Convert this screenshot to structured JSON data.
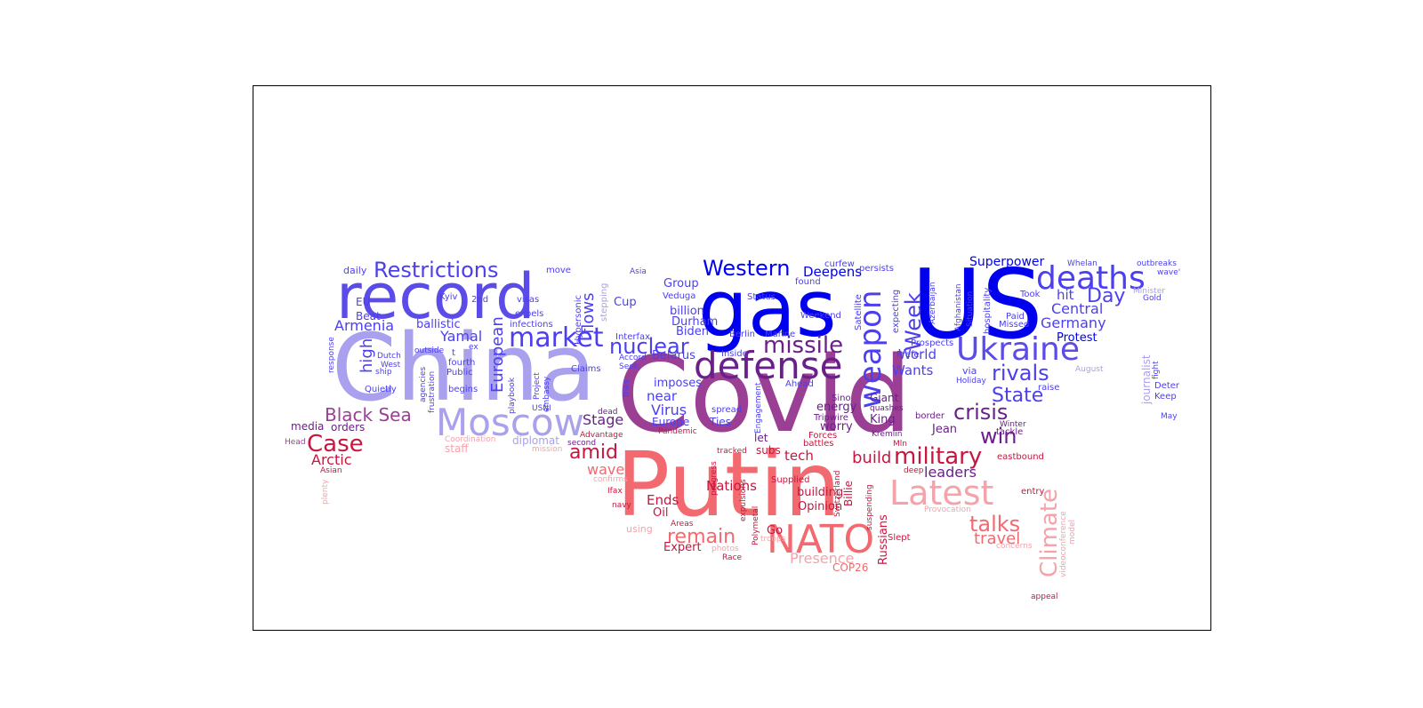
{
  "colors": {
    "blue": "#0000ee",
    "indigo": "#4b3ff0",
    "violet": "#5b4be8",
    "lavender": "#a9a0ee",
    "purple": "#6a1f8a",
    "mauve": "#9b3f95",
    "crimson": "#c8163f",
    "coral": "#f2696f",
    "pink": "#f4a3aa"
  },
  "words": [
    {
      "text": "Covid",
      "color": "mauve"
    },
    {
      "text": "Putin",
      "color": "coral"
    },
    {
      "text": "China",
      "color": "lavender"
    },
    {
      "text": "gas",
      "color": "blue"
    },
    {
      "text": "US",
      "color": "blue"
    },
    {
      "text": "record",
      "color": "violet"
    },
    {
      "text": "NATO",
      "color": "coral"
    },
    {
      "text": "Moscow",
      "color": "lavender"
    },
    {
      "text": "defense",
      "color": "purple"
    },
    {
      "text": "Ukraine",
      "color": "violet"
    },
    {
      "text": "weapon",
      "color": "indigo"
    },
    {
      "text": "Latest",
      "color": "pink"
    },
    {
      "text": "deaths",
      "color": "indigo"
    },
    {
      "text": "market",
      "color": "indigo"
    },
    {
      "text": "Restrictions",
      "color": "indigo"
    },
    {
      "text": "Western",
      "color": "blue"
    },
    {
      "text": "missile",
      "color": "purple"
    },
    {
      "text": "nuclear",
      "color": "indigo"
    },
    {
      "text": "military",
      "color": "crimson"
    },
    {
      "text": "Climate",
      "color": "pink"
    },
    {
      "text": "Case",
      "color": "crimson"
    },
    {
      "text": "Week",
      "color": "indigo"
    },
    {
      "text": "remain",
      "color": "coral"
    },
    {
      "text": "talks",
      "color": "coral"
    },
    {
      "text": "Black Sea",
      "color": "mauve"
    },
    {
      "text": "rivals",
      "color": "indigo"
    },
    {
      "text": "crisis",
      "color": "purple"
    },
    {
      "text": "amid",
      "color": "crimson"
    },
    {
      "text": "win",
      "color": "purple"
    },
    {
      "text": "State",
      "color": "indigo"
    },
    {
      "text": "Day",
      "color": "indigo"
    },
    {
      "text": "European",
      "color": "indigo"
    },
    {
      "text": "high",
      "color": "indigo"
    },
    {
      "text": "Presence",
      "color": "pink"
    },
    {
      "text": "flows",
      "color": "indigo"
    },
    {
      "text": "travel",
      "color": "coral"
    },
    {
      "text": "build",
      "color": "crimson"
    },
    {
      "text": "Germany",
      "color": "indigo"
    },
    {
      "text": "Central",
      "color": "indigo"
    },
    {
      "text": "Superpower",
      "color": "blue"
    },
    {
      "text": "Armenia",
      "color": "indigo"
    },
    {
      "text": "Arctic",
      "color": "crimson"
    },
    {
      "text": "Yamal",
      "color": "indigo"
    },
    {
      "text": "Wants",
      "color": "indigo"
    },
    {
      "text": "World",
      "color": "indigo"
    },
    {
      "text": "Stage",
      "color": "purple"
    },
    {
      "text": "wave",
      "color": "coral"
    },
    {
      "text": "Virus",
      "color": "indigo"
    },
    {
      "text": "leaders",
      "color": "purple"
    },
    {
      "text": "Ends",
      "color": "crimson"
    },
    {
      "text": "tech",
      "color": "crimson"
    },
    {
      "text": "hit",
      "color": "indigo"
    },
    {
      "text": "near",
      "color": "indigo"
    },
    {
      "text": "Nations",
      "color": "crimson"
    },
    {
      "text": "Group",
      "color": "indigo"
    },
    {
      "text": "Deepens",
      "color": "blue"
    },
    {
      "text": "billion",
      "color": "indigo"
    },
    {
      "text": "Cup",
      "color": "indigo"
    },
    {
      "text": "ballistic",
      "color": "indigo"
    },
    {
      "text": "Durham",
      "color": "indigo"
    },
    {
      "text": "Protest",
      "color": "blue"
    },
    {
      "text": "Belarus",
      "color": "indigo"
    },
    {
      "text": "imposes",
      "color": "indigo"
    },
    {
      "text": "Biden",
      "color": "indigo"
    },
    {
      "text": "Europe",
      "color": "indigo"
    },
    {
      "text": "Ties",
      "color": "indigo"
    },
    {
      "text": "King",
      "color": "purple"
    },
    {
      "text": "Giant",
      "color": "purple"
    },
    {
      "text": "energy",
      "color": "purple"
    },
    {
      "text": "worry",
      "color": "purple"
    },
    {
      "text": "Jean",
      "color": "purple"
    },
    {
      "text": "building",
      "color": "crimson"
    },
    {
      "text": "Opinion",
      "color": "crimson"
    },
    {
      "text": "Oil",
      "color": "crimson"
    },
    {
      "text": "Russians",
      "color": "crimson"
    },
    {
      "text": "Expert",
      "color": "crimson"
    },
    {
      "text": "COP26",
      "color": "coral"
    },
    {
      "text": "Go",
      "color": "crimson"
    },
    {
      "text": "media",
      "color": "purple"
    },
    {
      "text": "orders",
      "color": "purple"
    },
    {
      "text": "staff",
      "color": "pink"
    },
    {
      "text": "let",
      "color": "purple"
    },
    {
      "text": "subs",
      "color": "crimson"
    },
    {
      "text": "Billie",
      "color": "crimson"
    },
    {
      "text": "using",
      "color": "pink"
    },
    {
      "text": "daily",
      "color": "indigo"
    },
    {
      "text": "EU",
      "color": "indigo"
    },
    {
      "text": "Beat",
      "color": "indigo"
    },
    {
      "text": "Kyiv",
      "color": "indigo"
    },
    {
      "text": "2nd",
      "color": "indigo"
    },
    {
      "text": "visas",
      "color": "indigo"
    },
    {
      "text": "expels",
      "color": "indigo"
    },
    {
      "text": "infections",
      "color": "indigo"
    },
    {
      "text": "Hypersonic",
      "color": "indigo"
    },
    {
      "text": "stepping",
      "color": "lavender"
    },
    {
      "text": "move",
      "color": "indigo"
    },
    {
      "text": "Asia",
      "color": "indigo"
    },
    {
      "text": "Veduga",
      "color": "indigo"
    },
    {
      "text": "Status",
      "color": "indigo"
    },
    {
      "text": "curfew",
      "color": "indigo"
    },
    {
      "text": "persists",
      "color": "indigo"
    },
    {
      "text": "found",
      "color": "indigo"
    },
    {
      "text": "Weekend",
      "color": "indigo"
    },
    {
      "text": "Satellite",
      "color": "indigo"
    },
    {
      "text": "expecting",
      "color": "indigo"
    },
    {
      "text": "Azerbaijan",
      "color": "indigo"
    },
    {
      "text": "Afghanistan",
      "color": "indigo"
    },
    {
      "text": "Situation",
      "color": "indigo"
    },
    {
      "text": "hospitality",
      "color": "indigo"
    },
    {
      "text": "Took",
      "color": "indigo"
    },
    {
      "text": "Paid",
      "color": "indigo"
    },
    {
      "text": "Missed",
      "color": "indigo"
    },
    {
      "text": "Whelan",
      "color": "indigo"
    },
    {
      "text": "outbreaks",
      "color": "indigo"
    },
    {
      "text": "wave'",
      "color": "indigo"
    },
    {
      "text": "Minister",
      "color": "lavender"
    },
    {
      "text": "Gold",
      "color": "indigo"
    },
    {
      "text": "Interfax",
      "color": "indigo"
    },
    {
      "text": "Inside",
      "color": "indigo"
    },
    {
      "text": "Berlin",
      "color": "indigo"
    },
    {
      "text": "Marine",
      "color": "indigo"
    },
    {
      "text": "Prospects",
      "color": "indigo"
    },
    {
      "text": "Prefer",
      "color": "indigo"
    },
    {
      "text": "via",
      "color": "indigo"
    },
    {
      "text": "Holiday",
      "color": "indigo"
    },
    {
      "text": "August",
      "color": "lavender"
    },
    {
      "text": "raise",
      "color": "indigo"
    },
    {
      "text": "journalist",
      "color": "lavender"
    },
    {
      "text": "fight",
      "color": "indigo"
    },
    {
      "text": "Deter",
      "color": "indigo"
    },
    {
      "text": "Keep",
      "color": "indigo"
    },
    {
      "text": "May",
      "color": "indigo"
    },
    {
      "text": "Winter",
      "color": "purple"
    },
    {
      "text": "tackle",
      "color": "purple"
    },
    {
      "text": "eastbound",
      "color": "crimson"
    },
    {
      "text": "entry",
      "color": "crimson"
    },
    {
      "text": "videoconference",
      "color": "pink"
    },
    {
      "text": "model",
      "color": "pink"
    },
    {
      "text": "concerns",
      "color": "pink"
    },
    {
      "text": "Provocation",
      "color": "pink"
    },
    {
      "text": "appeal",
      "color": "crimson"
    },
    {
      "text": "border",
      "color": "purple"
    },
    {
      "text": "Kremlin",
      "color": "purple"
    },
    {
      "text": "Mln",
      "color": "crimson"
    },
    {
      "text": "deep",
      "color": "crimson"
    },
    {
      "text": "Slept",
      "color": "crimson"
    },
    {
      "text": "suspending",
      "color": "crimson"
    },
    {
      "text": "Switzerland",
      "color": "crimson"
    },
    {
      "text": "quashes",
      "color": "purple"
    },
    {
      "text": "Sino",
      "color": "purple"
    },
    {
      "text": "Tripwire",
      "color": "purple"
    },
    {
      "text": "Forces",
      "color": "crimson"
    },
    {
      "text": "battles",
      "color": "crimson"
    },
    {
      "text": "Ahead",
      "color": "indigo"
    },
    {
      "text": "Supplied",
      "color": "crimson"
    },
    {
      "text": "troops",
      "color": "pink"
    },
    {
      "text": "Polymetal",
      "color": "crimson"
    },
    {
      "text": "expulsions",
      "color": "crimson"
    },
    {
      "text": "tracked",
      "color": "crimson"
    },
    {
      "text": "Engagement",
      "color": "indigo"
    },
    {
      "text": "spread",
      "color": "indigo"
    },
    {
      "text": "progress",
      "color": "crimson"
    },
    {
      "text": "Pandemic",
      "color": "crimson"
    },
    {
      "text": "Areas",
      "color": "crimson"
    },
    {
      "text": "photos",
      "color": "pink"
    },
    {
      "text": "Race",
      "color": "crimson"
    },
    {
      "text": "navy",
      "color": "crimson"
    },
    {
      "text": "Ifax",
      "color": "crimson"
    },
    {
      "text": "Advantage",
      "color": "crimson"
    },
    {
      "text": "dead",
      "color": "purple"
    },
    {
      "text": "second",
      "color": "purple"
    },
    {
      "text": "confirms",
      "color": "pink"
    },
    {
      "text": "mission",
      "color": "pink"
    },
    {
      "text": "diplomat",
      "color": "lavender"
    },
    {
      "text": "Coordination",
      "color": "pink"
    },
    {
      "text": "Tries",
      "color": "indigo"
    },
    {
      "text": "Seek",
      "color": "indigo"
    },
    {
      "text": "Accord",
      "color": "indigo"
    },
    {
      "text": "Claims",
      "color": "indigo"
    },
    {
      "text": "embassy",
      "color": "indigo"
    },
    {
      "text": "Project",
      "color": "indigo"
    },
    {
      "text": "USNI",
      "color": "indigo"
    },
    {
      "text": "playbook",
      "color": "indigo"
    },
    {
      "text": "begins",
      "color": "indigo"
    },
    {
      "text": "Public",
      "color": "indigo"
    },
    {
      "text": "fourth",
      "color": "indigo"
    },
    {
      "text": "t",
      "color": "indigo"
    },
    {
      "text": "ex",
      "color": "indigo"
    },
    {
      "text": "outside",
      "color": "indigo"
    },
    {
      "text": "frustration",
      "color": "indigo"
    },
    {
      "text": "agencies",
      "color": "indigo"
    },
    {
      "text": "Quietly",
      "color": "indigo"
    },
    {
      "text": "ship",
      "color": "indigo"
    },
    {
      "text": "West",
      "color": "indigo"
    },
    {
      "text": "Dutch",
      "color": "indigo"
    },
    {
      "text": "response",
      "color": "indigo"
    },
    {
      "text": "Head",
      "color": "mauve"
    },
    {
      "text": "Asian",
      "color": "crimson"
    },
    {
      "text": "plenty",
      "color": "pink"
    }
  ]
}
